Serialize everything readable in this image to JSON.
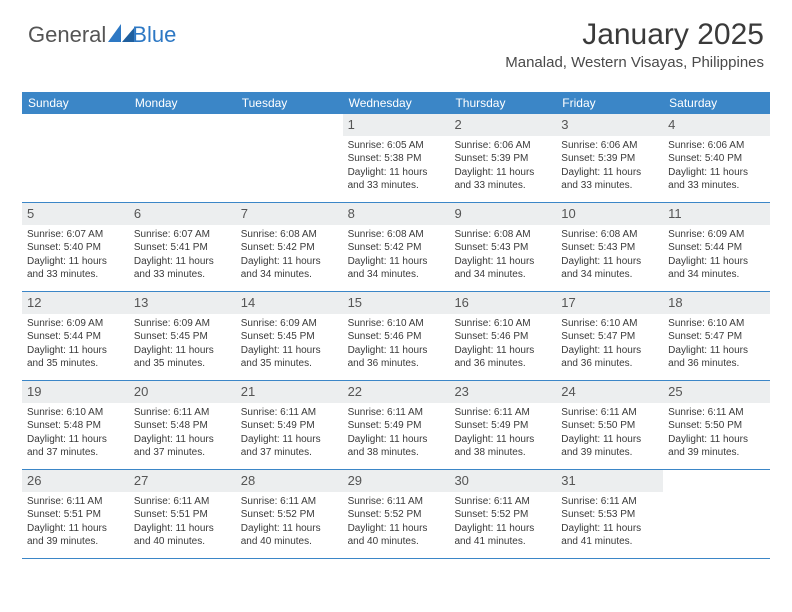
{
  "brand": {
    "part1": "General",
    "part2": "Blue"
  },
  "title": "January 2025",
  "location": "Manalad, Western Visayas, Philippines",
  "colors": {
    "header_bg": "#3b86c7",
    "header_text": "#ffffff",
    "daynum_bg": "#eceeef",
    "border": "#3b86c7",
    "text": "#3a3a3a",
    "brand_gray": "#555555",
    "brand_blue": "#2d78c4"
  },
  "weekdays": [
    "Sunday",
    "Monday",
    "Tuesday",
    "Wednesday",
    "Thursday",
    "Friday",
    "Saturday"
  ],
  "weeks": [
    [
      {
        "n": "",
        "sr": "",
        "ss": "",
        "dl": ""
      },
      {
        "n": "",
        "sr": "",
        "ss": "",
        "dl": ""
      },
      {
        "n": "",
        "sr": "",
        "ss": "",
        "dl": ""
      },
      {
        "n": "1",
        "sr": "Sunrise: 6:05 AM",
        "ss": "Sunset: 5:38 PM",
        "dl": "Daylight: 11 hours and 33 minutes."
      },
      {
        "n": "2",
        "sr": "Sunrise: 6:06 AM",
        "ss": "Sunset: 5:39 PM",
        "dl": "Daylight: 11 hours and 33 minutes."
      },
      {
        "n": "3",
        "sr": "Sunrise: 6:06 AM",
        "ss": "Sunset: 5:39 PM",
        "dl": "Daylight: 11 hours and 33 minutes."
      },
      {
        "n": "4",
        "sr": "Sunrise: 6:06 AM",
        "ss": "Sunset: 5:40 PM",
        "dl": "Daylight: 11 hours and 33 minutes."
      }
    ],
    [
      {
        "n": "5",
        "sr": "Sunrise: 6:07 AM",
        "ss": "Sunset: 5:40 PM",
        "dl": "Daylight: 11 hours and 33 minutes."
      },
      {
        "n": "6",
        "sr": "Sunrise: 6:07 AM",
        "ss": "Sunset: 5:41 PM",
        "dl": "Daylight: 11 hours and 33 minutes."
      },
      {
        "n": "7",
        "sr": "Sunrise: 6:08 AM",
        "ss": "Sunset: 5:42 PM",
        "dl": "Daylight: 11 hours and 34 minutes."
      },
      {
        "n": "8",
        "sr": "Sunrise: 6:08 AM",
        "ss": "Sunset: 5:42 PM",
        "dl": "Daylight: 11 hours and 34 minutes."
      },
      {
        "n": "9",
        "sr": "Sunrise: 6:08 AM",
        "ss": "Sunset: 5:43 PM",
        "dl": "Daylight: 11 hours and 34 minutes."
      },
      {
        "n": "10",
        "sr": "Sunrise: 6:08 AM",
        "ss": "Sunset: 5:43 PM",
        "dl": "Daylight: 11 hours and 34 minutes."
      },
      {
        "n": "11",
        "sr": "Sunrise: 6:09 AM",
        "ss": "Sunset: 5:44 PM",
        "dl": "Daylight: 11 hours and 34 minutes."
      }
    ],
    [
      {
        "n": "12",
        "sr": "Sunrise: 6:09 AM",
        "ss": "Sunset: 5:44 PM",
        "dl": "Daylight: 11 hours and 35 minutes."
      },
      {
        "n": "13",
        "sr": "Sunrise: 6:09 AM",
        "ss": "Sunset: 5:45 PM",
        "dl": "Daylight: 11 hours and 35 minutes."
      },
      {
        "n": "14",
        "sr": "Sunrise: 6:09 AM",
        "ss": "Sunset: 5:45 PM",
        "dl": "Daylight: 11 hours and 35 minutes."
      },
      {
        "n": "15",
        "sr": "Sunrise: 6:10 AM",
        "ss": "Sunset: 5:46 PM",
        "dl": "Daylight: 11 hours and 36 minutes."
      },
      {
        "n": "16",
        "sr": "Sunrise: 6:10 AM",
        "ss": "Sunset: 5:46 PM",
        "dl": "Daylight: 11 hours and 36 minutes."
      },
      {
        "n": "17",
        "sr": "Sunrise: 6:10 AM",
        "ss": "Sunset: 5:47 PM",
        "dl": "Daylight: 11 hours and 36 minutes."
      },
      {
        "n": "18",
        "sr": "Sunrise: 6:10 AM",
        "ss": "Sunset: 5:47 PM",
        "dl": "Daylight: 11 hours and 36 minutes."
      }
    ],
    [
      {
        "n": "19",
        "sr": "Sunrise: 6:10 AM",
        "ss": "Sunset: 5:48 PM",
        "dl": "Daylight: 11 hours and 37 minutes."
      },
      {
        "n": "20",
        "sr": "Sunrise: 6:11 AM",
        "ss": "Sunset: 5:48 PM",
        "dl": "Daylight: 11 hours and 37 minutes."
      },
      {
        "n": "21",
        "sr": "Sunrise: 6:11 AM",
        "ss": "Sunset: 5:49 PM",
        "dl": "Daylight: 11 hours and 37 minutes."
      },
      {
        "n": "22",
        "sr": "Sunrise: 6:11 AM",
        "ss": "Sunset: 5:49 PM",
        "dl": "Daylight: 11 hours and 38 minutes."
      },
      {
        "n": "23",
        "sr": "Sunrise: 6:11 AM",
        "ss": "Sunset: 5:49 PM",
        "dl": "Daylight: 11 hours and 38 minutes."
      },
      {
        "n": "24",
        "sr": "Sunrise: 6:11 AM",
        "ss": "Sunset: 5:50 PM",
        "dl": "Daylight: 11 hours and 39 minutes."
      },
      {
        "n": "25",
        "sr": "Sunrise: 6:11 AM",
        "ss": "Sunset: 5:50 PM",
        "dl": "Daylight: 11 hours and 39 minutes."
      }
    ],
    [
      {
        "n": "26",
        "sr": "Sunrise: 6:11 AM",
        "ss": "Sunset: 5:51 PM",
        "dl": "Daylight: 11 hours and 39 minutes."
      },
      {
        "n": "27",
        "sr": "Sunrise: 6:11 AM",
        "ss": "Sunset: 5:51 PM",
        "dl": "Daylight: 11 hours and 40 minutes."
      },
      {
        "n": "28",
        "sr": "Sunrise: 6:11 AM",
        "ss": "Sunset: 5:52 PM",
        "dl": "Daylight: 11 hours and 40 minutes."
      },
      {
        "n": "29",
        "sr": "Sunrise: 6:11 AM",
        "ss": "Sunset: 5:52 PM",
        "dl": "Daylight: 11 hours and 40 minutes."
      },
      {
        "n": "30",
        "sr": "Sunrise: 6:11 AM",
        "ss": "Sunset: 5:52 PM",
        "dl": "Daylight: 11 hours and 41 minutes."
      },
      {
        "n": "31",
        "sr": "Sunrise: 6:11 AM",
        "ss": "Sunset: 5:53 PM",
        "dl": "Daylight: 11 hours and 41 minutes."
      },
      {
        "n": "",
        "sr": "",
        "ss": "",
        "dl": ""
      }
    ]
  ]
}
